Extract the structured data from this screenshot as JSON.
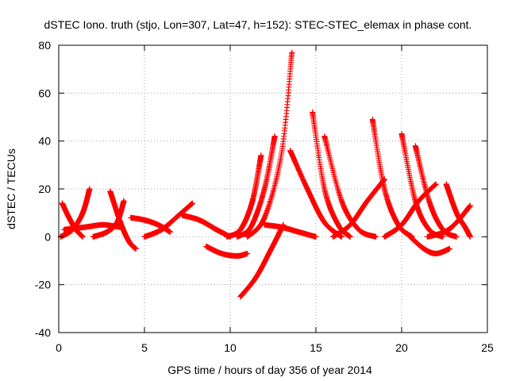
{
  "chart_data": {
    "type": "scatter",
    "title": "dSTEC Iono. truth (stjo, Lon=307, Lat=47, h=152): STEC-STEC_elemax in phase cont.",
    "xlabel": "GPS time / hours of day 356 of year 2014",
    "ylabel": "dSTEC  / TECUs",
    "xlim": [
      0,
      25
    ],
    "ylim": [
      -40,
      80
    ],
    "xticks": [
      0,
      5,
      10,
      15,
      20,
      25
    ],
    "yticks": [
      -40,
      -20,
      0,
      20,
      40,
      60,
      80
    ],
    "grid": true,
    "marker": "plus",
    "color": "#ff0000",
    "series": [
      {
        "x": [
          0.2,
          0.6,
          1.0,
          1.4
        ],
        "y": [
          14,
          8,
          3,
          0
        ]
      },
      {
        "x": [
          0.1,
          0.8,
          1.4,
          1.8
        ],
        "y": [
          0,
          3,
          10,
          20
        ]
      },
      {
        "x": [
          0.3,
          1.5,
          2.6,
          3.6
        ],
        "y": [
          3,
          4,
          5,
          4
        ]
      },
      {
        "x": [
          2.0,
          2.8,
          3.4,
          3.8
        ],
        "y": [
          0,
          2,
          6,
          15
        ]
      },
      {
        "x": [
          3.0,
          3.6,
          4.1,
          4.5
        ],
        "y": [
          19,
          6,
          -2,
          -5
        ]
      },
      {
        "x": [
          4.2,
          5.0,
          5.8,
          6.5
        ],
        "y": [
          8,
          7,
          5,
          2
        ]
      },
      {
        "x": [
          5.0,
          6.0,
          7.0,
          7.8
        ],
        "y": [
          0,
          3,
          9,
          14
        ]
      },
      {
        "x": [
          7.2,
          8.2,
          9.2,
          10.0
        ],
        "y": [
          9,
          7,
          3,
          0
        ]
      },
      {
        "x": [
          8.6,
          9.5,
          10.4,
          11.0
        ],
        "y": [
          -4,
          -7,
          -8,
          -7
        ]
      },
      {
        "x": [
          9.8,
          10.6,
          11.3,
          11.8
        ],
        "y": [
          0,
          3,
          15,
          34
        ]
      },
      {
        "x": [
          10.4,
          11.2,
          12.0,
          12.6
        ],
        "y": [
          0,
          4,
          20,
          42
        ]
      },
      {
        "x": [
          10.6,
          11.5,
          12.4,
          13.1
        ],
        "y": [
          -25,
          -17,
          -5,
          5
        ]
      },
      {
        "x": [
          11.0,
          12.0,
          13.0,
          13.6
        ],
        "y": [
          0,
          8,
          35,
          77
        ]
      },
      {
        "x": [
          12.0,
          13.0,
          14.0,
          15.0
        ],
        "y": [
          5,
          4,
          2,
          0
        ]
      },
      {
        "x": [
          13.5,
          14.5,
          15.5,
          16.5
        ],
        "y": [
          36,
          20,
          6,
          0
        ]
      },
      {
        "x": [
          14.8,
          15.5,
          16.3,
          17.0
        ],
        "y": [
          52,
          20,
          5,
          0
        ]
      },
      {
        "x": [
          15.5,
          16.5,
          17.5,
          18.5
        ],
        "y": [
          42,
          15,
          3,
          0
        ]
      },
      {
        "x": [
          16.0,
          17.0,
          18.0,
          19.0
        ],
        "y": [
          0,
          5,
          15,
          24
        ]
      },
      {
        "x": [
          18.3,
          19.0,
          19.8,
          20.6
        ],
        "y": [
          49,
          20,
          5,
          0
        ]
      },
      {
        "x": [
          19.0,
          20.0,
          21.0,
          22.0
        ],
        "y": [
          0,
          5,
          15,
          22
        ]
      },
      {
        "x": [
          20.0,
          20.8,
          21.6,
          22.4
        ],
        "y": [
          43,
          15,
          3,
          0
        ]
      },
      {
        "x": [
          20.8,
          21.6,
          22.4,
          23.2
        ],
        "y": [
          38,
          15,
          3,
          0
        ]
      },
      {
        "x": [
          20.5,
          21.3,
          22.0,
          22.8
        ],
        "y": [
          0,
          -5,
          -7,
          -5
        ]
      },
      {
        "x": [
          21.5,
          22.5,
          23.2,
          24.0
        ],
        "y": [
          0,
          2,
          6,
          13
        ]
      },
      {
        "x": [
          22.6,
          23.2,
          23.7,
          24.0
        ],
        "y": [
          22,
          10,
          4,
          0
        ]
      }
    ]
  }
}
